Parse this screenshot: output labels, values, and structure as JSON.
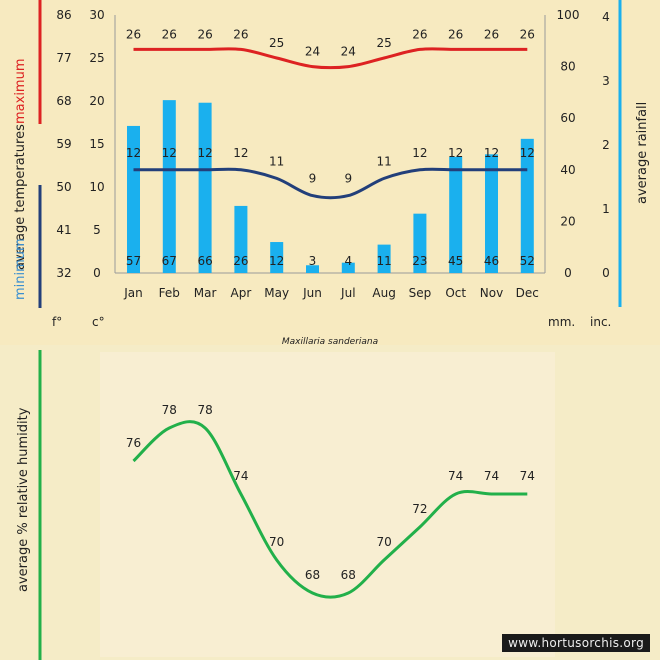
{
  "caption": "Maxillaria sanderiana",
  "watermark": "www.hortusorchis.org",
  "colors": {
    "max_line": "#dd2222",
    "min_line": "#223f7a",
    "rain_bar": "#1ab0ee",
    "humidity_line": "#22b04a",
    "max_label": "#dd2222",
    "min_label": "#3a8fd0"
  },
  "labels": {
    "left_axis_title_max": "maximum",
    "left_axis_title_mid": "average temperatures",
    "left_axis_title_min": "minimum",
    "right_axis_title": "average rainfall",
    "unit_f": "f°",
    "unit_c": "c°",
    "unit_mm": "mm.",
    "unit_inc": "inc.",
    "humidity_axis_title": "average % relative humidity"
  },
  "chart_data": [
    {
      "type": "bar",
      "categories": [
        "Jan",
        "Feb",
        "Mar",
        "Apr",
        "May",
        "Jun",
        "Jul",
        "Aug",
        "Sep",
        "Oct",
        "Nov",
        "Dec"
      ],
      "axes": {
        "fahrenheit_ticks": [
          "86",
          "77",
          "68",
          "59",
          "50",
          "41",
          "32"
        ],
        "celsius_ticks": [
          "30",
          "25",
          "20",
          "15",
          "10",
          "5",
          "0"
        ],
        "mm_ticks": [
          "100",
          "80",
          "60",
          "40",
          "20",
          "0"
        ],
        "inch_ticks": [
          "4",
          "3",
          "2",
          "1",
          "0"
        ],
        "c_range": [
          0,
          30
        ],
        "mm_range": [
          0,
          100
        ]
      },
      "series": [
        {
          "name": "maximum",
          "kind": "line",
          "values": [
            26,
            26,
            26,
            26,
            25,
            24,
            24,
            25,
            26,
            26,
            26,
            26
          ]
        },
        {
          "name": "minimum",
          "kind": "line",
          "values": [
            12,
            12,
            12,
            12,
            11,
            9,
            9,
            11,
            12,
            12,
            12,
            12
          ]
        },
        {
          "name": "average rainfall",
          "kind": "bar",
          "values": [
            57,
            67,
            66,
            26,
            12,
            3,
            4,
            11,
            23,
            45,
            46,
            52
          ]
        }
      ]
    },
    {
      "type": "line",
      "categories": [
        "Jan",
        "Feb",
        "Mar",
        "Apr",
        "May",
        "Jun",
        "Jul",
        "Aug",
        "Sep",
        "Oct",
        "Nov",
        "Dec"
      ],
      "series": [
        {
          "name": "average % relative humidity",
          "values": [
            76,
            78,
            78,
            74,
            70,
            68,
            68,
            70,
            72,
            74,
            74,
            74
          ]
        }
      ]
    }
  ]
}
